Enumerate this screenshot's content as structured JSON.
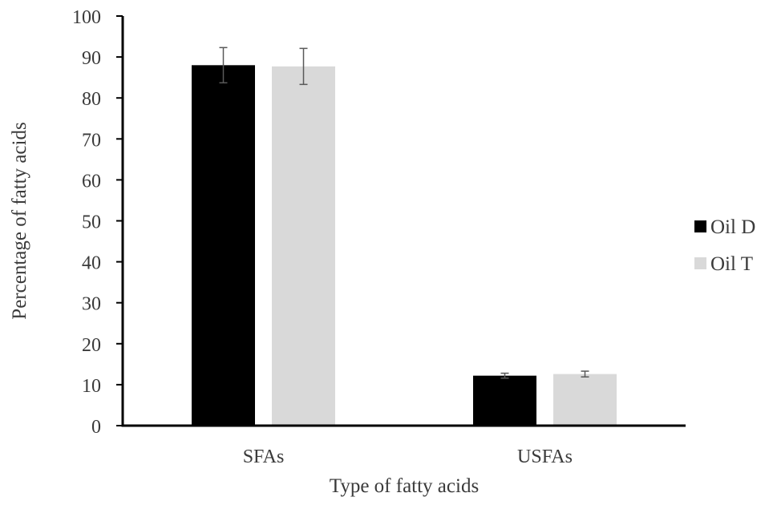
{
  "chart_data": {
    "type": "bar",
    "title": "",
    "xlabel": "Type of fatty acids",
    "ylabel": "Percentage of fatty acids",
    "categories": [
      "SFAs",
      "USFAs"
    ],
    "series": [
      {
        "name": "Oil D",
        "values": [
          88.0,
          12.2
        ],
        "errors": [
          4.3,
          0.6
        ],
        "color": "#000000"
      },
      {
        "name": "Oil T",
        "values": [
          87.7,
          12.6
        ],
        "errors": [
          4.4,
          0.7
        ],
        "color": "#d9d9d9"
      }
    ],
    "ylim": [
      0,
      100
    ],
    "yticks": [
      0,
      10,
      20,
      30,
      40,
      50,
      60,
      70,
      80,
      90,
      100
    ],
    "grid": false,
    "legend_position": "right"
  }
}
